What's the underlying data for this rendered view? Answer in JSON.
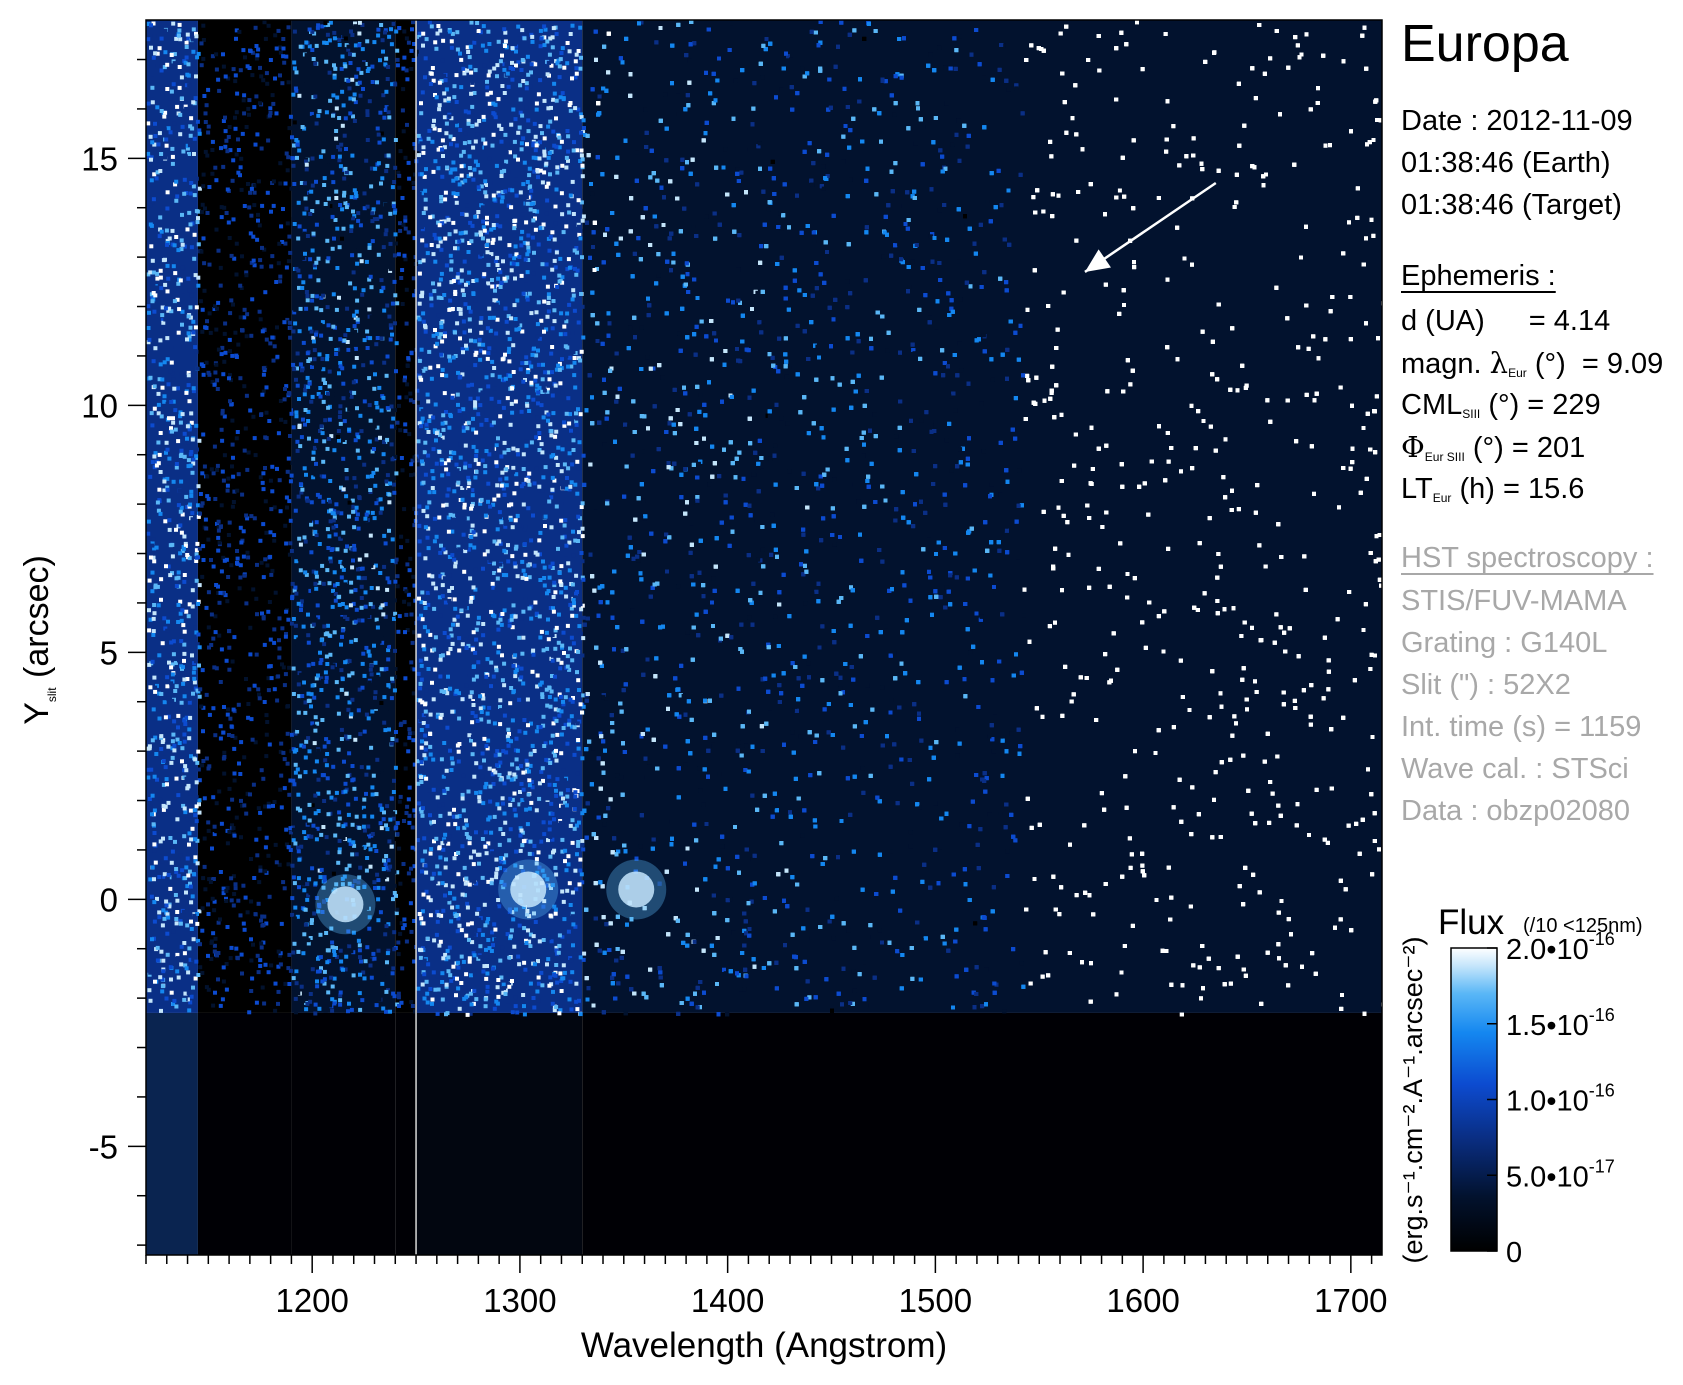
{
  "colors": {
    "colormap": [
      "#000000",
      "#02122e",
      "#0a2f86",
      "#0c4bd0",
      "#1487f0",
      "#5ab7f6",
      "#c4e5fb",
      "#ffffff"
    ],
    "background": "#ffffff",
    "slit_line": "#d8d8d8",
    "arrow": "#ffffff",
    "gray_text": "#a8a8a8"
  },
  "panel": {
    "title": "Europa",
    "date": "Date : 2012-11-09",
    "time_earth": "01:38:46 (Earth)",
    "time_target": "01:38:46 (Target)",
    "ephemeris_header": "Ephemeris :",
    "ephemeris": {
      "d_label": "d (UA)",
      "d_value": "= 4.14",
      "lat_prefix": "magn. ",
      "lat_symbol": "λ",
      "lat_sub": "Eur",
      "lat_unit": "(°)",
      "lat_value": "= 9.09",
      "cml_prefix": "CML",
      "cml_sub": "SIII",
      "cml_unit": "(°)",
      "cml_value": "= 229",
      "phi_symbol": "Φ",
      "phi_sub": "Eur SIII",
      "phi_unit": "(°)",
      "phi_value": "= 201",
      "lt_prefix": "LT",
      "lt_sub": "Eur",
      "lt_unit": "(h)",
      "lt_value": "= 15.6"
    },
    "hst_header": "HST spectroscopy :",
    "hst": [
      "STIS/FUV-MAMA",
      "Grating : G140L",
      "Slit (\") : 52X2",
      "Int. time (s) = 1159",
      "Wave cal. : STSci",
      "Data : obzp02080"
    ]
  },
  "chart_data": {
    "type": "heatmap",
    "title": "",
    "xlabel": "Wavelength (Angstrom)",
    "ylabel_main": "Y",
    "ylabel_sub": "slit",
    "ylabel_unit": "(arcsec)",
    "xlim": [
      1120,
      1715
    ],
    "ylim": [
      -7.2,
      17.8
    ],
    "xticks": [
      1200,
      1300,
      1400,
      1500,
      1600,
      1700
    ],
    "xtick_labels": [
      "1200",
      "1300",
      "1400",
      "1500",
      "1600",
      "1700"
    ],
    "yticks": [
      -5,
      0,
      5,
      10,
      15
    ],
    "ytick_labels": [
      "-5",
      "0",
      "5",
      "10",
      "15"
    ],
    "x_minor_step": 10,
    "y_minor_step": 1,
    "slit_edge_y": -2.3,
    "slit_line_x": 1250,
    "arrow": {
      "from": [
        1635,
        14.5
      ],
      "to": [
        1572,
        12.7
      ]
    },
    "bright_spots": [
      {
        "x": 1216,
        "y": -0.1
      },
      {
        "x": 1304,
        "y": 0.2
      },
      {
        "x": 1356,
        "y": 0.2
      }
    ],
    "spectral_bands": [
      {
        "x0": 1120,
        "x1": 1145,
        "level": "high"
      },
      {
        "x0": 1145,
        "x1": 1190,
        "level": "low"
      },
      {
        "x0": 1190,
        "x1": 1240,
        "level": "medium"
      },
      {
        "x0": 1240,
        "x1": 1250,
        "level": "low"
      },
      {
        "x0": 1250,
        "x1": 1330,
        "level": "high"
      },
      {
        "x0": 1330,
        "x1": 1715,
        "level": "decreasing"
      }
    ],
    "colorbar": {
      "title": "Flux",
      "title_note": "(/10 <125nm)",
      "unit_label": "(erg.s⁻¹.cm⁻².A⁻¹.arcsec⁻²)",
      "range": [
        0,
        2e-16
      ],
      "ticks": [
        {
          "value": 0,
          "label": "0",
          "mant": "",
          "exp": ""
        },
        {
          "value": 5e-17,
          "label": "",
          "mant": "5.0•10",
          "exp": "-17"
        },
        {
          "value": 1e-16,
          "label": "",
          "mant": "1.0•10",
          "exp": "-16"
        },
        {
          "value": 1.5e-16,
          "label": "",
          "mant": "1.5•10",
          "exp": "-16"
        },
        {
          "value": 2e-16,
          "label": "",
          "mant": "2.0•10",
          "exp": "-16"
        }
      ]
    }
  }
}
